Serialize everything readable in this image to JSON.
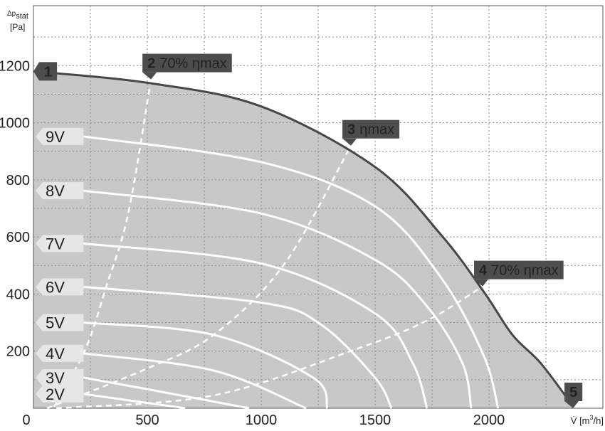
{
  "chart_data": {
    "type": "fan-curve",
    "y_label": {
      "main": "Δp",
      "sub": "stat",
      "unit": "[Pa]"
    },
    "x_label": {
      "main": "V̇ [m",
      "sup": "3",
      "end": "/h]"
    },
    "xlim": [
      0,
      2500
    ],
    "ylim": [
      0,
      1410
    ],
    "xticks": [
      0,
      500,
      1000,
      1500,
      2000
    ],
    "yticks": [
      200,
      400,
      600,
      800,
      1000,
      1200
    ],
    "xgrid": [
      250,
      500,
      750,
      1000,
      1250,
      1500,
      1750,
      2000,
      2250
    ],
    "ygrid": [
      100,
      200,
      300,
      400,
      500,
      600,
      700,
      800,
      900,
      1000,
      1100,
      1200,
      1300
    ],
    "grid": true,
    "fill_color": "#c8c8c8",
    "envelope": {
      "color": "#474747",
      "x": [
        0,
        500,
        1000,
        1500,
        1790,
        1978,
        2103,
        2228,
        2369
      ],
      "values": [
        1180,
        1140,
        1057,
        845,
        607,
        407,
        257,
        157,
        7
      ]
    },
    "series": [
      {
        "name": "9V",
        "color": "#ffffff",
        "x": [
          220,
          1000,
          1500,
          1790,
          1978,
          2040
        ],
        "values": [
          952,
          862,
          707,
          457,
          182,
          0
        ]
      },
      {
        "name": "8V",
        "color": "#ffffff",
        "x": [
          220,
          1000,
          1500,
          1728,
          1884,
          1922
        ],
        "values": [
          762,
          682,
          520,
          357,
          157,
          0
        ]
      },
      {
        "name": "7V",
        "color": "#ffffff",
        "x": [
          220,
          1000,
          1500,
          1666,
          1728
        ],
        "values": [
          577,
          507,
          332,
          157,
          0
        ]
      },
      {
        "name": "6V",
        "color": "#ffffff",
        "x": [
          220,
          1000,
          1259,
          1500,
          1572
        ],
        "values": [
          425,
          370,
          295,
          107,
          0
        ]
      },
      {
        "name": "5V",
        "color": "#ffffff",
        "x": [
          220,
          791,
          1228,
          1290
        ],
        "values": [
          300,
          257,
          107,
          0
        ]
      },
      {
        "name": "4V",
        "color": "#ffffff",
        "x": [
          220,
          791,
          1197
        ],
        "values": [
          192,
          132,
          0
        ]
      },
      {
        "name": "3V",
        "color": "#ffffff",
        "x": [
          220,
          478,
          947
        ],
        "values": [
          107,
          70,
          0
        ]
      },
      {
        "name": "2V",
        "color": "#ffffff",
        "x": [
          220,
          666
        ],
        "values": [
          50,
          0
        ]
      }
    ],
    "efficiency_lines": [
      {
        "x": [
          90,
          228,
          322,
          416,
          516
        ],
        "values": [
          5,
          207,
          432,
          682,
          1152
        ]
      },
      {
        "x": [
          60,
          478,
          791,
          1103,
          1394
        ],
        "values": [
          0,
          132,
          257,
          507,
          920
        ]
      },
      {
        "x": [
          100,
          791,
          1416,
          1728,
          1972
        ],
        "values": [
          0,
          45,
          207,
          307,
          427
        ]
      }
    ],
    "annotations": [
      {
        "number": "1",
        "x": 0,
        "y": 1180,
        "pointer": "left"
      },
      {
        "number": "2",
        "text": "70% ηmax",
        "x": 516,
        "y": 1152,
        "pointer": "down"
      },
      {
        "number": "3",
        "text": "ηmax",
        "x": 1394,
        "y": 920,
        "pointer": "down"
      },
      {
        "number": "4",
        "text": "70% ηmax",
        "x": 1972,
        "y": 427,
        "pointer": "down"
      },
      {
        "number": "5",
        "x": 2369,
        "y": 0,
        "pointer": "down"
      }
    ]
  }
}
